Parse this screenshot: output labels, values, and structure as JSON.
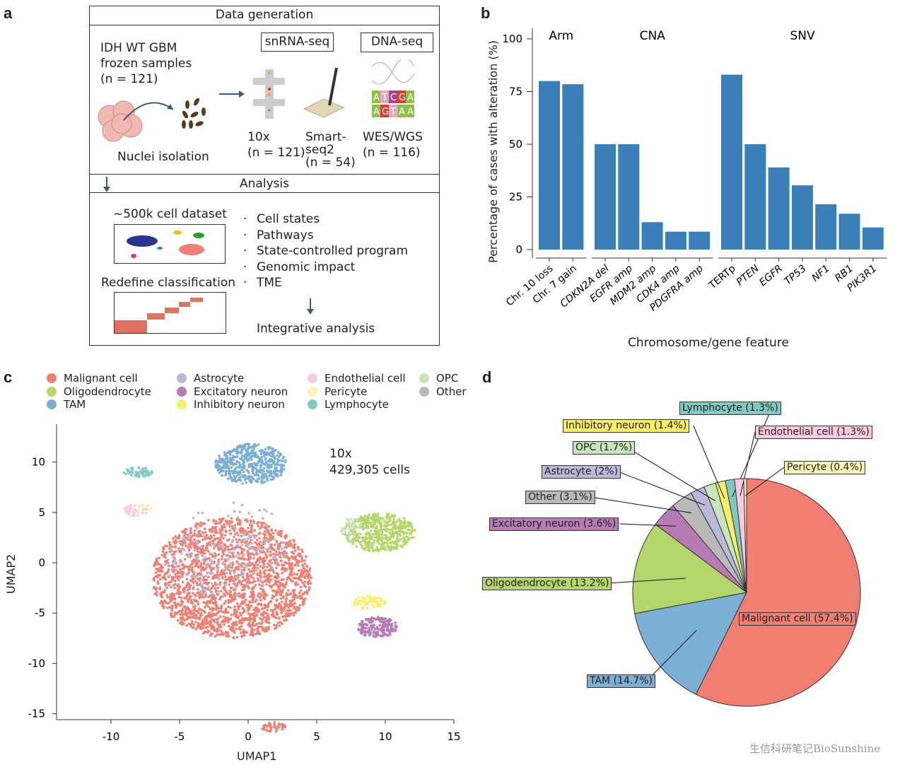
{
  "panels": {
    "a": "a",
    "b": "b",
    "c": "c",
    "d": "d"
  },
  "panel_a": {
    "data_generation": "Data generation",
    "samples_line1": "IDH WT GBM",
    "samples_line2": "frozen samples",
    "samples_line3": "(n = 121)",
    "nuclei": "Nuclei isolation",
    "snrna": "snRNA-seq",
    "dnaseq": "DNA-seq",
    "tenx": "10x",
    "tenx_n": "(n = 121)",
    "smart1": "Smart-",
    "smart2": "seq2",
    "smart_n": "(n = 54)",
    "wes": "WES/WGS",
    "wes_n": "(n = 116)",
    "dna_letters_top": [
      "A",
      "T",
      "C",
      "G",
      "A"
    ],
    "dna_letters_bottom": [
      "A",
      "G",
      "T",
      "A",
      "A"
    ],
    "analysis": "Analysis",
    "dataset": "~500k cell dataset",
    "redefine": "Redefine classification",
    "bullets": [
      "Cell states",
      "Pathways",
      "State-controlled program",
      "Genomic impact",
      "TME"
    ],
    "integrative": "Integrative analysis"
  },
  "chart_data": [
    {
      "type": "bar",
      "panel": "b",
      "ylabel": "Percentage of cases with alteration (%)",
      "xlabel": "Chromosome/gene feature",
      "ylim": [
        0,
        100
      ],
      "yticks": [
        0,
        25,
        50,
        75,
        100
      ],
      "color": "#3a7fb8",
      "groups": [
        {
          "name": "Arm",
          "categories": [
            "Chr. 10 loss",
            "Chr. 7 gain"
          ],
          "values": [
            80,
            78.5
          ]
        },
        {
          "name": "CNA",
          "categories": [
            "CDKN2A del",
            "EGFR amp",
            "MDM2 amp",
            "CDK4 amp",
            "PDGFRA amp"
          ],
          "values": [
            50,
            50,
            13,
            8.5,
            8.5
          ]
        },
        {
          "name": "SNV",
          "categories": [
            "TERTp",
            "PTEN",
            "EGFR",
            "TP53",
            "NF1",
            "RB1",
            "PIK3R1"
          ],
          "values": [
            83,
            50,
            39,
            30.5,
            21.5,
            17,
            10.5
          ]
        }
      ]
    },
    {
      "type": "scatter",
      "panel": "c",
      "xlabel": "UMAP1",
      "ylabel": "UMAP2",
      "xticks": [
        -10,
        -5,
        0,
        5,
        10,
        15
      ],
      "yticks": [
        10,
        5,
        0,
        -5,
        -10,
        -15
      ],
      "annotation_line1": "10x",
      "annotation_line2": "429,305 cells",
      "legend": [
        {
          "name": "Malignant cell",
          "color": "#f07f72"
        },
        {
          "name": "Oligodendrocyte",
          "color": "#b5d66a"
        },
        {
          "name": "TAM",
          "color": "#7bafd4"
        },
        {
          "name": "Astrocyte",
          "color": "#bcb8da"
        },
        {
          "name": "Excitatory neuron",
          "color": "#b77bb6"
        },
        {
          "name": "Inhibitory neuron",
          "color": "#f7ef6a"
        },
        {
          "name": "Endothelial cell",
          "color": "#f9c9df"
        },
        {
          "name": "Pericyte",
          "color": "#f8f5b3"
        },
        {
          "name": "Lymphocyte",
          "color": "#80cbc0"
        },
        {
          "name": "OPC",
          "color": "#c6e5bd"
        },
        {
          "name": "Other",
          "color": "#b9b9b9"
        }
      ]
    },
    {
      "type": "pie",
      "panel": "d",
      "slices": [
        {
          "name": "Malignant cell",
          "value": 57.4,
          "label": "Malignant cell (57.4%)",
          "color": "#f07f72"
        },
        {
          "name": "TAM",
          "value": 14.7,
          "label": "TAM (14.7%)",
          "color": "#7bafd4"
        },
        {
          "name": "Oligodendrocyte",
          "value": 13.2,
          "label": "Oligodendrocyte (13.2%)",
          "color": "#b5d66a"
        },
        {
          "name": "Excitatory neuron",
          "value": 3.6,
          "label": "Excitatory neuron (3.6%)",
          "color": "#b77bb6"
        },
        {
          "name": "Other",
          "value": 3.1,
          "label": "Other (3.1%)",
          "color": "#b9b9b9"
        },
        {
          "name": "Astrocyte",
          "value": 2,
          "label": "Astrocyte (2%)",
          "color": "#bcb8da"
        },
        {
          "name": "OPC",
          "value": 1.7,
          "label": "OPC (1.7%)",
          "color": "#c6e5bd"
        },
        {
          "name": "Inhibitory neuron",
          "value": 1.4,
          "label": "Inhibitory neuron (1.4%)",
          "color": "#f7ef6a"
        },
        {
          "name": "Lymphocyte",
          "value": 1.3,
          "label": "Lymphocyte (1.3%)",
          "color": "#80cbc0"
        },
        {
          "name": "Endothelial cell",
          "value": 1.3,
          "label": "Endothelial cell (1.3%)",
          "color": "#f9c9df"
        },
        {
          "name": "Pericyte",
          "value": 0.4,
          "label": "Pericyte (0.4%)",
          "color": "#f8f5b3"
        }
      ]
    }
  ],
  "watermark": "生信科研笔记BioSunshine"
}
